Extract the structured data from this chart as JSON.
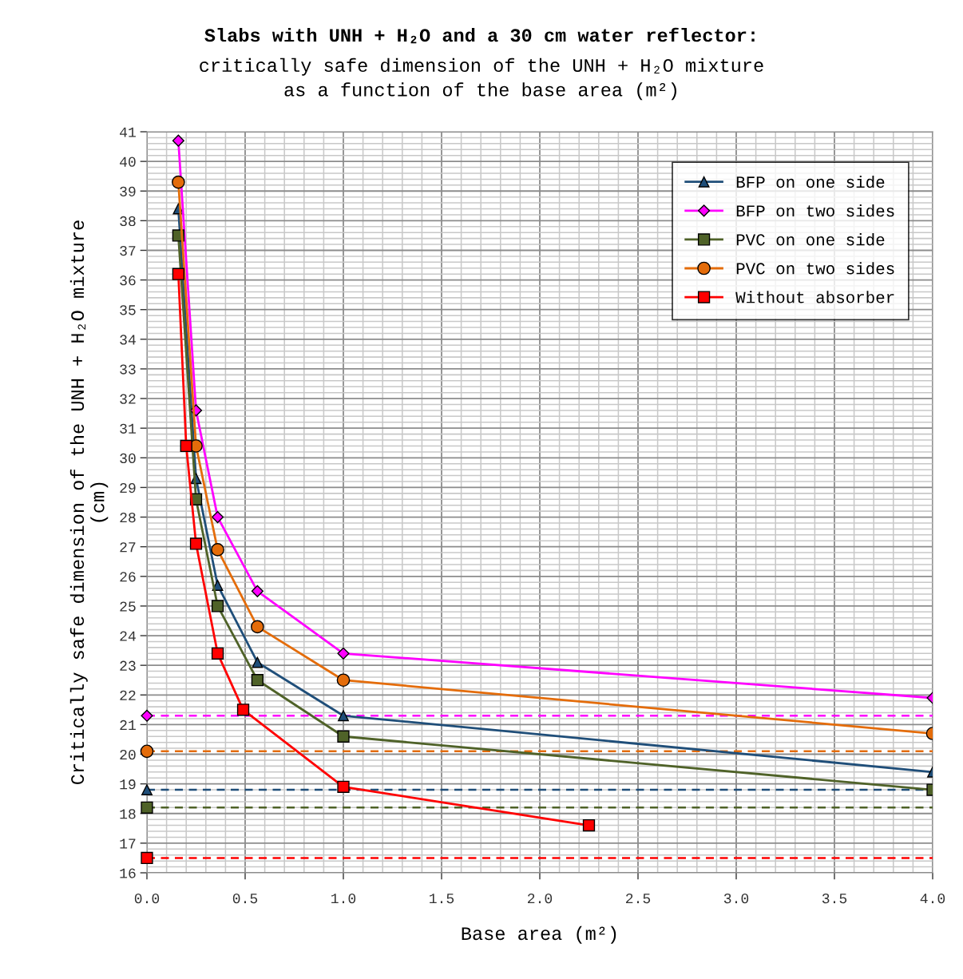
{
  "chart_data": {
    "type": "line",
    "title": "Slabs with UNH + H₂O and a 30 cm water reflector:",
    "subtitle": "critically safe dimension of the UNH + H₂O mixture\nas a function of the base area (m²)",
    "xlabel": "Base area (m²)",
    "ylabel": "Critically safe dimension of the UNH + H₂O mixture\n(cm)",
    "xlim": [
      0,
      4
    ],
    "ylim": [
      16,
      41
    ],
    "xticks": [
      {
        "value": 0,
        "label": "0.0"
      },
      0.5,
      {
        "value": 1,
        "label": "1.0"
      },
      1.5,
      {
        "value": 2,
        "label": "2.0"
      },
      2.5,
      {
        "value": 3,
        "label": "3.0"
      },
      3.5,
      {
        "value": 4,
        "label": "4.0"
      }
    ],
    "yticks": [
      16,
      17,
      18,
      19,
      20,
      21,
      22,
      23,
      24,
      25,
      26,
      27,
      28,
      29,
      30,
      31,
      32,
      33,
      34,
      35,
      36,
      37,
      38,
      39,
      40,
      41
    ],
    "grid": true,
    "legend": "top right",
    "line_style": "solid",
    "series": [
      {
        "name": "BFP on one side",
        "color": "#1f4e79",
        "marker": "triangle",
        "x": [
          0.16,
          0.25,
          0.36,
          0.5625,
          1,
          4
        ],
        "values": [
          38.4,
          29.3,
          25.7,
          23.1,
          21.3,
          19.4
        ]
      },
      {
        "name": "BFP on two sides",
        "color": "#ff00ff",
        "marker": "diamond",
        "x": [
          0.16,
          0.25,
          0.36,
          0.5625,
          1,
          4
        ],
        "values": [
          40.7,
          31.6,
          28.0,
          25.5,
          23.4,
          21.9
        ]
      },
      {
        "name": "PVC on one side",
        "color": "#4f6228",
        "marker": "square",
        "x": [
          0.16,
          0.25,
          0.36,
          0.5625,
          1,
          4
        ],
        "values": [
          37.5,
          28.6,
          25.0,
          22.5,
          20.6,
          18.8
        ]
      },
      {
        "name": "PVC on two sides",
        "color": "#e46c0a",
        "marker": "circle",
        "x": [
          0.16,
          0.25,
          0.36,
          0.5625,
          1,
          4
        ],
        "values": [
          39.3,
          30.4,
          26.9,
          24.3,
          22.5,
          20.7
        ]
      },
      {
        "name": "Without absorber",
        "color": "#ff0000",
        "marker": "square",
        "x": [
          0.16,
          0.2,
          0.25,
          0.36,
          0.49,
          1,
          2.25
        ],
        "values": [
          36.2,
          30.4,
          27.1,
          23.4,
          21.5,
          18.9,
          17.6
        ]
      },
      {
        "type": "scatter",
        "color": "#ff00ff",
        "marker": "diamond",
        "x": [
          0
        ],
        "values": [
          21.3
        ]
      },
      {
        "type": "scatter",
        "color": "#e46c0a",
        "marker": "circle",
        "x": [
          0
        ],
        "values": [
          20.1
        ]
      },
      {
        "type": "scatter",
        "color": "#1f4e79",
        "marker": "triangle",
        "x": [
          0
        ],
        "values": [
          18.8
        ]
      },
      {
        "type": "scatter",
        "color": "#4f6228",
        "marker": "square",
        "x": [
          0
        ],
        "values": [
          18.2
        ]
      },
      {
        "type": "scatter",
        "color": "#ff0000",
        "marker": "square",
        "x": [
          0
        ],
        "values": [
          16.5
        ]
      }
    ],
    "ref_lines": [
      {
        "axis": "y",
        "value": 21.3,
        "color": "#ff00ff",
        "line_style": "dashed"
      },
      {
        "axis": "y",
        "value": 20.1,
        "color": "#e46c0a",
        "line_style": "dashed"
      },
      {
        "axis": "y",
        "value": 18.8,
        "color": "#1f4e79",
        "line_style": "dashed"
      },
      {
        "axis": "y",
        "value": 18.2,
        "color": "#4f6228",
        "line_style": "dashed"
      },
      {
        "axis": "y",
        "value": 16.5,
        "color": "#ff0000",
        "line_style": "dashed"
      }
    ]
  }
}
